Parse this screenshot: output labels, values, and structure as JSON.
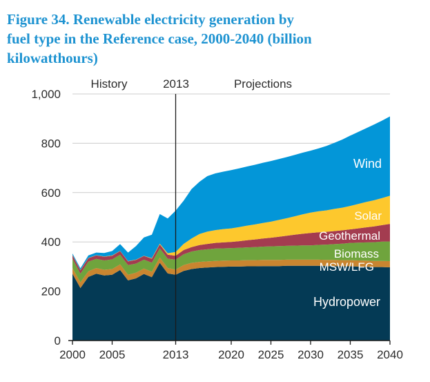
{
  "figure": {
    "title_lines": [
      "Figure 34. Renewable electricity generation by",
      "fuel type in the Reference case, 2000-2040 (billion",
      "kilowatthours)"
    ],
    "title_color": "#1E93D1"
  },
  "chart_data": {
    "type": "area",
    "stacked": true,
    "title": "Figure 34. Renewable electricity generation by fuel type in the Reference case, 2000-2040 (billion kilowatthours)",
    "xlabel": "",
    "ylabel": "",
    "xlim": [
      2000,
      2040
    ],
    "ylim": [
      0,
      1000
    ],
    "grid": true,
    "x": [
      2000,
      2001,
      2002,
      2003,
      2004,
      2005,
      2006,
      2007,
      2008,
      2009,
      2010,
      2011,
      2012,
      2013,
      2014,
      2015,
      2016,
      2017,
      2018,
      2019,
      2020,
      2021,
      2022,
      2023,
      2024,
      2025,
      2026,
      2027,
      2028,
      2029,
      2030,
      2031,
      2032,
      2033,
      2034,
      2035,
      2036,
      2037,
      2038,
      2039,
      2040
    ],
    "series": [
      {
        "name": "Hydropower",
        "color": "#043A55",
        "values": [
          271,
          213,
          258,
          271,
          264,
          267,
          286,
          244,
          252,
          270,
          257,
          315,
          272,
          267,
          282,
          290,
          294,
          296,
          298,
          299,
          300,
          300,
          301,
          301,
          302,
          302,
          302,
          303,
          303,
          303,
          303,
          303,
          302,
          302,
          301,
          301,
          300,
          299,
          298,
          298,
          297
        ]
      },
      {
        "name": "MSW/LFG",
        "color": "#C98530",
        "values": [
          23,
          23,
          23,
          23,
          23,
          23,
          23,
          23,
          23,
          22,
          22,
          22,
          22,
          21,
          24,
          25,
          25,
          25,
          25,
          25,
          25,
          25,
          25,
          25,
          25,
          25,
          25,
          25,
          25,
          25,
          25,
          25,
          25,
          25,
          25,
          25,
          25,
          25,
          25,
          25,
          25
        ]
      },
      {
        "name": "Biomass",
        "color": "#6FA43D",
        "values": [
          38,
          35,
          39,
          37,
          38,
          39,
          39,
          39,
          37,
          36,
          37,
          37,
          38,
          40,
          44,
          46,
          48,
          49,
          50,
          50,
          50,
          51,
          52,
          53,
          54,
          55,
          56,
          56,
          57,
          58,
          58,
          60,
          62,
          64,
          67,
          70,
          72,
          74,
          76,
          78,
          80
        ]
      },
      {
        "name": "Geothermal",
        "color": "#A33C50",
        "values": [
          14,
          14,
          14,
          14,
          15,
          15,
          15,
          15,
          15,
          15,
          16,
          16,
          16,
          16,
          17,
          18,
          20,
          22,
          23,
          24,
          25,
          27,
          29,
          31,
          33,
          35,
          38,
          41,
          44,
          47,
          50,
          51,
          52,
          53,
          54,
          55,
          58,
          61,
          64,
          67,
          71
        ]
      },
      {
        "name": "Solar",
        "color": "#FDC82D",
        "values": [
          1,
          1,
          1,
          1,
          1,
          1,
          1,
          1,
          1,
          1,
          2,
          3,
          6,
          15,
          25,
          35,
          45,
          50,
          52,
          54,
          55,
          57,
          59,
          61,
          63,
          65,
          68,
          71,
          75,
          79,
          83,
          85,
          87,
          90,
          92,
          95,
          99,
          103,
          106,
          110,
          114
        ]
      },
      {
        "name": "Wind",
        "color": "#0396D8",
        "values": [
          6,
          7,
          10,
          11,
          14,
          18,
          27,
          35,
          55,
          74,
          95,
          120,
          141,
          168,
          175,
          200,
          212,
          225,
          230,
          233,
          236,
          238,
          240,
          242,
          244,
          246,
          247,
          248,
          249,
          250,
          251,
          255,
          261,
          268,
          276,
          285,
          292,
          299,
          307,
          314,
          322
        ]
      }
    ],
    "y_axis": {
      "tick_values": [
        0,
        200,
        400,
        600,
        800,
        1000
      ],
      "tick_labels": [
        "0",
        "200",
        "400",
        "600",
        "800",
        "1,000"
      ]
    },
    "x_axis": {
      "tick_years": [
        2000,
        2005,
        2013,
        2020,
        2025,
        2030,
        2035,
        2040
      ],
      "tick_labels": [
        "2000",
        "2005",
        "2013",
        "2020",
        "2025",
        "2030",
        "2035",
        "2040"
      ]
    },
    "annotations": {
      "history_label": "History",
      "divider_label": "2013",
      "projections_label": "Projections",
      "divider_year": 2013
    },
    "area_labels": [
      {
        "text": "Wind",
        "x": 553,
        "y": 243,
        "size": 18
      },
      {
        "text": "Solar",
        "x": 553,
        "y": 318,
        "size": 17
      },
      {
        "text": "Geothermal",
        "x": 551,
        "y": 347,
        "size": 17
      },
      {
        "text": "Biomass",
        "x": 549,
        "y": 373,
        "size": 17
      },
      {
        "text": "MSW/LFG",
        "x": 542,
        "y": 392,
        "size": 17
      },
      {
        "text": "Hydropower",
        "x": 551,
        "y": 443,
        "size": 18
      }
    ],
    "colors": {
      "grid": "#CCCCCC",
      "axis": "#1A1A1A",
      "tick_text": "#2B2B2B",
      "area_label_text": "#FFFFFF"
    },
    "legend_position": "in-plot-right"
  }
}
